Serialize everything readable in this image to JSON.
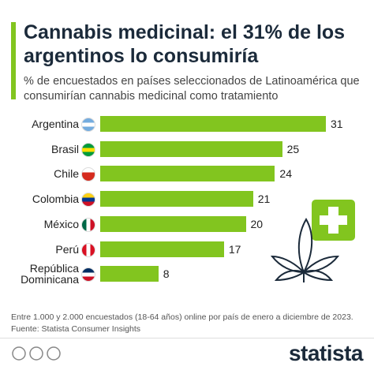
{
  "chart_data": {
    "type": "bar",
    "orientation": "horizontal",
    "title": "Cannabis medicinal: el 31% de los argentinos lo consumiría",
    "subtitle": "% de encuestados en países seleccionados de Latinoamérica que consumirían cannabis medicinal como tratamiento",
    "categories": [
      "Argentina",
      "Brasil",
      "Chile",
      "Colombia",
      "México",
      "Perú",
      "República Dominicana"
    ],
    "values": [
      31,
      25,
      24,
      21,
      20,
      17,
      8
    ],
    "color": "#82c51f",
    "note": "Entre 1.000 y 2.000 encuestados (18-64 años) online por país de enero a diciembre de 2023.",
    "source": "Fuente: Statista Consumer Insights",
    "brand": "statista"
  }
}
